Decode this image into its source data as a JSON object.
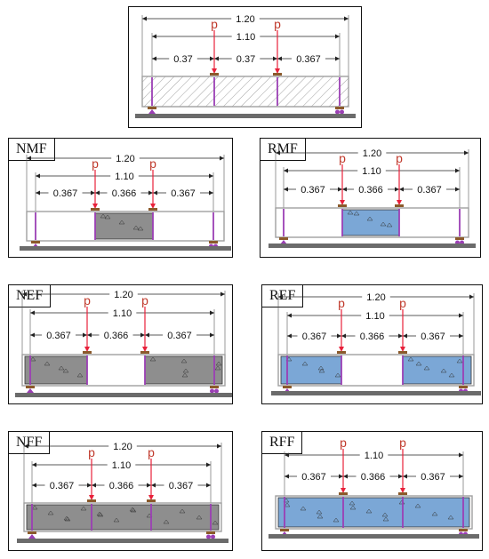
{
  "diagrams": [
    {
      "id": "reference",
      "label": "",
      "overall_span": "1.20",
      "support_span": "1.10",
      "segments": [
        "0.37",
        "0.37",
        "0.367"
      ],
      "load_symbol": "p",
      "fill": "hatch",
      "colors": {
        "hatch": "#8a8a8a"
      }
    },
    {
      "id": "nmf",
      "label": "NMF",
      "overall_span": "1.20",
      "support_span": "1.10",
      "segments": [
        "0.367",
        "0.366",
        "0.367"
      ],
      "load_symbol": "p",
      "fill": "middle",
      "colors": {
        "fill": "#8e8e8e"
      }
    },
    {
      "id": "rmf",
      "label": "RMF",
      "overall_span": "1.20",
      "support_span": "1.10",
      "segments": [
        "0.367",
        "0.366",
        "0.367"
      ],
      "load_symbol": "p",
      "fill": "middle",
      "colors": {
        "fill": "#7ba7d6"
      }
    },
    {
      "id": "nef",
      "label": "NEF",
      "overall_span": "1.20",
      "support_span": "1.10",
      "segments": [
        "0.367",
        "0.366",
        "0.367"
      ],
      "load_symbol": "p",
      "fill": "ends",
      "colors": {
        "fill": "#8e8e8e"
      }
    },
    {
      "id": "ref",
      "label": "REF",
      "overall_span": "1.20",
      "support_span": "1.10",
      "segments": [
        "0.367",
        "0.366",
        "0.367"
      ],
      "load_symbol": "p",
      "fill": "ends",
      "colors": {
        "fill": "#7ba7d6"
      }
    },
    {
      "id": "nff",
      "label": "NFF",
      "overall_span": "1.20",
      "support_span": "1.10",
      "segments": [
        "0.367",
        "0.366",
        "0.367"
      ],
      "load_symbol": "p",
      "fill": "full",
      "colors": {
        "fill": "#8e8e8e"
      }
    },
    {
      "id": "rff",
      "label": "RFF",
      "overall_span": "",
      "support_span": "1.10",
      "segments": [
        "0.367",
        "0.366",
        "0.367"
      ],
      "load_symbol": "p",
      "fill": "full",
      "colors": {
        "fill": "#7ba7d6"
      }
    }
  ],
  "colors": {
    "load_arrow": "#e8203a",
    "load_label": "#c0392b",
    "rebar": "#9b3fb4",
    "plate": "#8b5a2b",
    "ground": "#6b6b6b",
    "beam_outline": "#a0a0a0"
  }
}
